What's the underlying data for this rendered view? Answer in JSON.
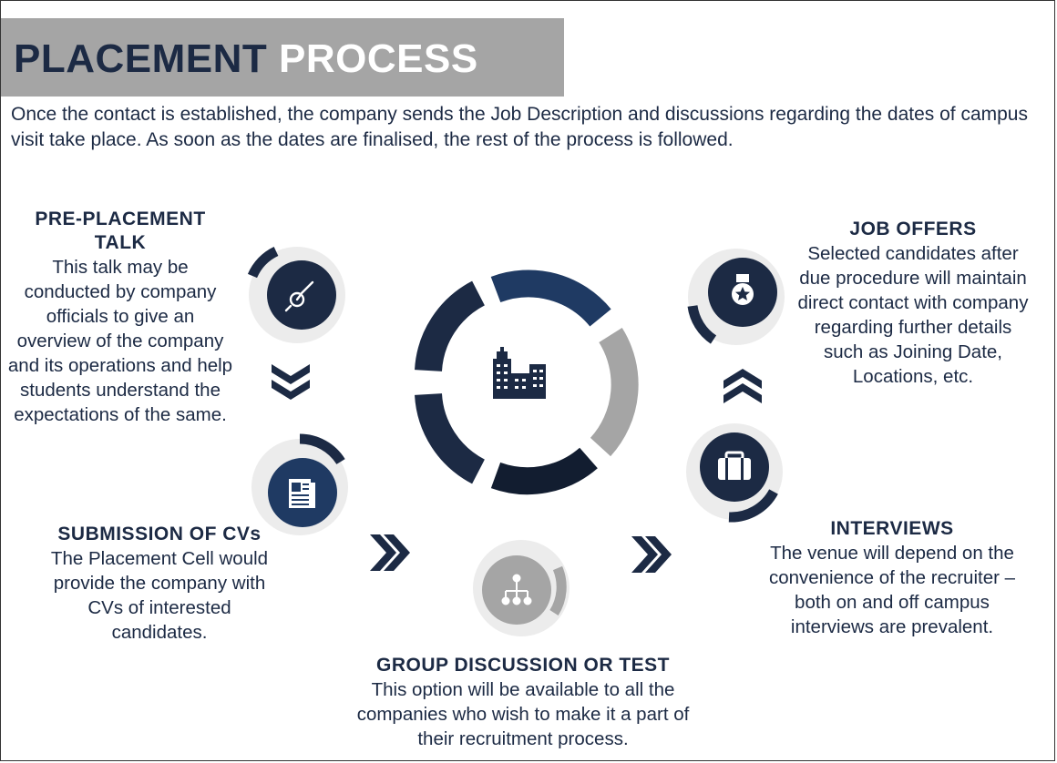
{
  "title": {
    "part1": "PLACEMENT",
    "part2": "PROCESS"
  },
  "intro": "Once the contact is established, the company sends the Job Description and discussions regarding the dates of campus visit take place. As soon as the dates are finalised, the rest of the process is followed.",
  "steps": [
    {
      "heading": "PRE-PLACEMENT TALK",
      "text": "This talk may be conducted by company officials to give an overview of the company and its operations and help students understand the expectations of the same.",
      "icon": "pen-watch-icon"
    },
    {
      "heading": "SUBMISSION OF CVs",
      "text": "The Placement Cell would provide the company with CVs of interested candidates.",
      "icon": "document-icon"
    },
    {
      "heading": "GROUP DISCUSSION OR TEST",
      "text": "This option will be available to all the companies who wish to make it a part of their recruitment process.",
      "icon": "hierarchy-icon"
    },
    {
      "heading": "INTERVIEWS",
      "text": "The venue will depend on the convenience of the recruiter – both on and off campus interviews are prevalent.",
      "icon": "briefcase-icon"
    },
    {
      "heading": "JOB OFFERS",
      "text": "Selected candidates after due procedure will maintain direct contact with company regarding further details such as Joining Date,  Locations, etc.",
      "icon": "medal-icon"
    }
  ],
  "center_icon": "buildings-icon",
  "colors": {
    "navy": "#1c2a44",
    "blue": "#1f3a63",
    "gray": "#a5a5a5",
    "light_gray": "#ececec"
  }
}
